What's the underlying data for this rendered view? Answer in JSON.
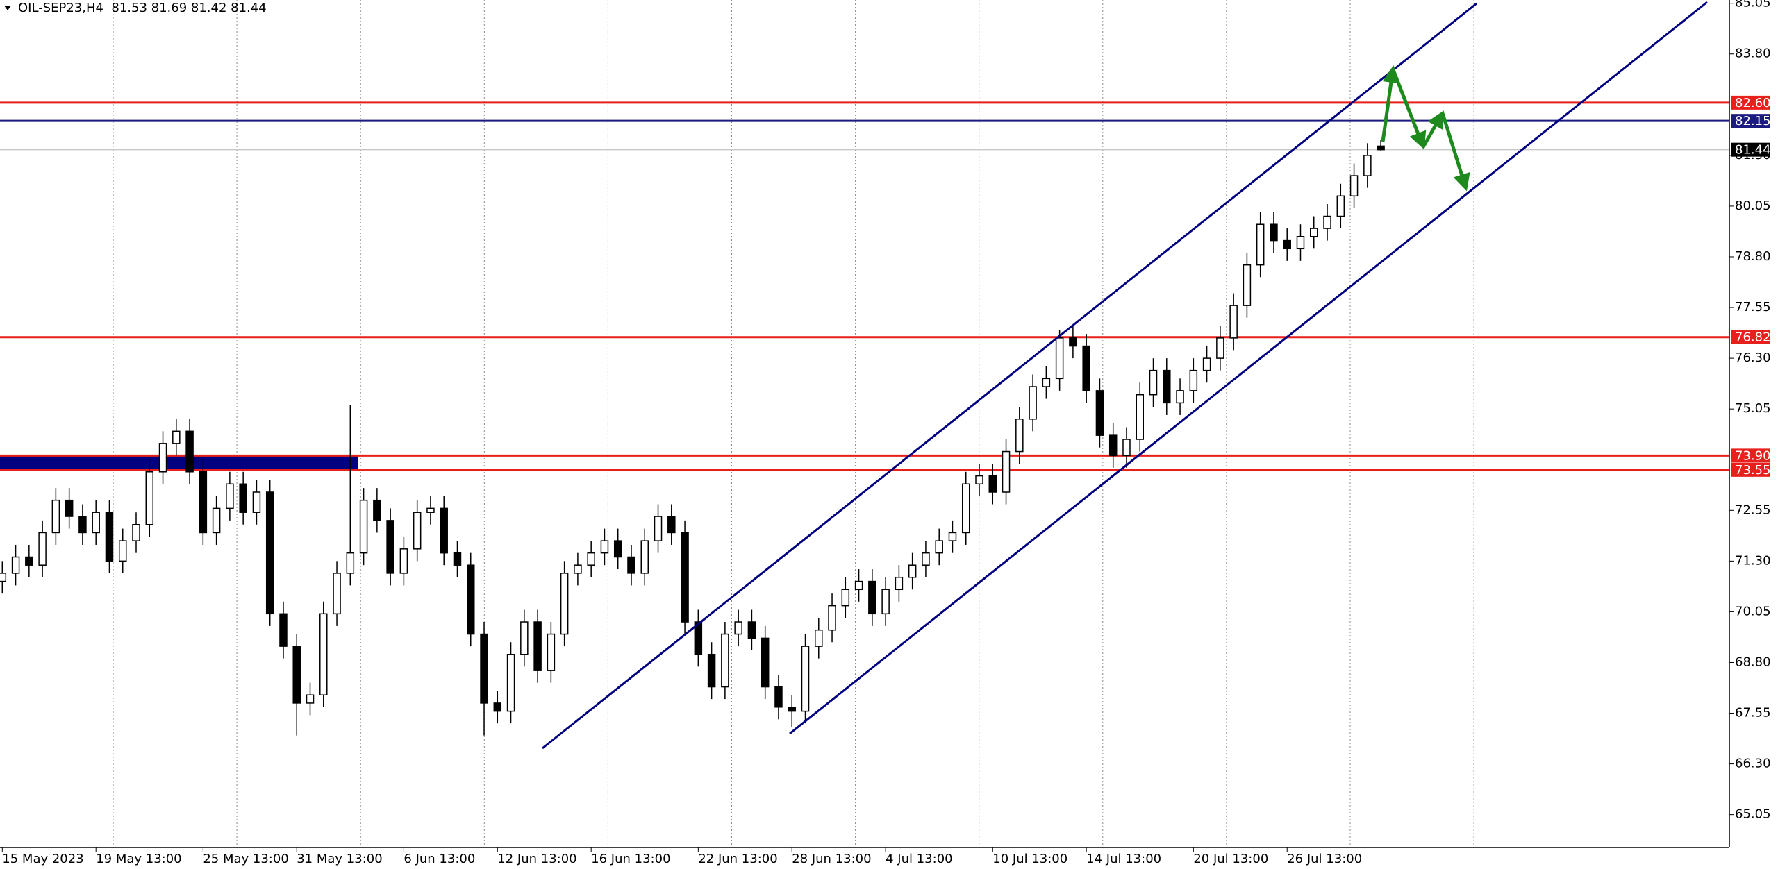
{
  "chart_data": {
    "type": "candlestick",
    "title": "OIL-SEP23,H4  81.53 81.69 81.42 81.44",
    "categories": [
      "15 May 2023",
      null,
      null,
      null,
      null,
      null,
      null,
      "19 May 13:00",
      null,
      null,
      null,
      null,
      null,
      null,
      null,
      "25 May 13:00",
      null,
      null,
      null,
      null,
      null,
      null,
      "31 May 13:00",
      null,
      null,
      null,
      null,
      null,
      null,
      null,
      "6 Jun 13:00",
      null,
      null,
      null,
      null,
      null,
      null,
      "12 Jun 13:00",
      null,
      null,
      null,
      null,
      null,
      null,
      "16 Jun 13:00",
      null,
      null,
      null,
      null,
      null,
      null,
      null,
      "22 Jun 13:00",
      null,
      null,
      null,
      null,
      null,
      null,
      "28 Jun 13:00",
      null,
      null,
      null,
      null,
      null,
      null,
      "4 Jul 13:00",
      null,
      null,
      null,
      null,
      null,
      null,
      null,
      "10 Jul 13:00",
      null,
      null,
      null,
      null,
      null,
      null,
      "14 Jul 13:00",
      null,
      null,
      null,
      null,
      null,
      null,
      null,
      "20 Jul 13:00",
      null,
      null,
      null,
      null,
      null,
      null,
      "26 Jul 13:00",
      null,
      null,
      null,
      null,
      null,
      null,
      null
    ],
    "open": [
      70.8,
      71.0,
      71.4,
      71.2,
      72.0,
      72.8,
      72.4,
      72.0,
      72.5,
      71.3,
      71.8,
      72.2,
      73.5,
      74.2,
      74.5,
      73.5,
      72.0,
      72.6,
      73.2,
      72.5,
      73.0,
      70.0,
      69.2,
      67.8,
      68.0,
      70.0,
      71.0,
      71.5,
      72.8,
      72.3,
      71.0,
      71.6,
      72.5,
      72.6,
      71.5,
      71.2,
      69.5,
      67.8,
      67.6,
      69.0,
      69.8,
      68.6,
      69.5,
      71.0,
      71.2,
      71.5,
      71.8,
      71.4,
      71.0,
      71.8,
      72.4,
      72.0,
      69.8,
      69.0,
      68.2,
      69.5,
      69.8,
      69.4,
      68.2,
      67.7,
      67.6,
      69.2,
      69.6,
      70.2,
      70.6,
      70.8,
      70.0,
      70.6,
      70.9,
      71.2,
      71.5,
      71.8,
      72.0,
      73.2,
      73.4,
      73.0,
      74.0,
      74.8,
      75.6,
      75.8,
      76.8,
      76.6,
      75.5,
      74.4,
      73.9,
      74.3,
      75.4,
      76.0,
      75.2,
      75.5,
      76.0,
      76.3,
      76.8,
      77.6,
      78.6,
      79.6,
      79.2,
      79.0,
      79.3,
      79.5,
      79.8,
      80.3,
      80.8,
      81.53
    ],
    "high": [
      71.3,
      71.7,
      71.7,
      72.3,
      73.1,
      73.1,
      72.7,
      72.8,
      72.8,
      72.1,
      72.5,
      73.8,
      74.5,
      74.8,
      74.8,
      73.8,
      72.9,
      73.5,
      73.5,
      73.3,
      73.3,
      70.3,
      69.5,
      68.3,
      70.3,
      71.3,
      75.15,
      73.1,
      73.1,
      72.6,
      71.9,
      72.8,
      72.9,
      72.9,
      71.8,
      71.5,
      69.8,
      68.1,
      69.3,
      70.1,
      70.1,
      69.8,
      71.3,
      71.5,
      71.8,
      72.1,
      72.1,
      71.7,
      72.1,
      72.7,
      72.7,
      72.3,
      70.1,
      69.3,
      69.8,
      70.1,
      70.1,
      69.7,
      68.5,
      68.0,
      69.5,
      69.9,
      70.5,
      70.9,
      71.1,
      71.1,
      70.9,
      71.2,
      71.5,
      71.8,
      72.1,
      72.3,
      73.5,
      73.7,
      73.7,
      74.3,
      75.1,
      75.9,
      76.1,
      77.0,
      77.1,
      76.9,
      75.8,
      74.7,
      74.6,
      75.7,
      76.3,
      76.3,
      75.8,
      76.3,
      76.6,
      77.1,
      77.9,
      78.9,
      79.9,
      79.9,
      79.5,
      79.6,
      79.8,
      80.1,
      80.6,
      81.1,
      81.6,
      81.69
    ],
    "low": [
      70.5,
      70.7,
      70.9,
      70.9,
      71.7,
      72.1,
      71.7,
      71.7,
      71.0,
      71.0,
      71.5,
      71.9,
      73.2,
      73.9,
      73.2,
      71.7,
      71.7,
      72.3,
      72.2,
      72.2,
      69.7,
      68.9,
      67.0,
      67.5,
      67.7,
      69.7,
      70.7,
      71.2,
      72.0,
      70.7,
      70.7,
      71.3,
      72.2,
      71.2,
      70.9,
      69.2,
      67.0,
      67.3,
      67.3,
      68.7,
      68.3,
      68.3,
      69.2,
      70.7,
      70.9,
      71.2,
      71.1,
      70.7,
      70.7,
      71.5,
      71.7,
      69.5,
      68.7,
      67.9,
      67.9,
      69.2,
      69.1,
      67.9,
      67.4,
      67.2,
      67.3,
      68.9,
      69.3,
      69.9,
      70.3,
      69.7,
      69.7,
      70.3,
      70.6,
      70.9,
      71.2,
      71.5,
      71.7,
      72.9,
      72.7,
      72.7,
      73.7,
      74.5,
      75.3,
      75.5,
      76.3,
      75.2,
      74.1,
      73.6,
      73.6,
      74.0,
      75.1,
      74.9,
      74.9,
      75.2,
      75.7,
      76.0,
      76.5,
      77.3,
      78.3,
      78.9,
      78.7,
      78.7,
      79.0,
      79.2,
      79.5,
      80.0,
      80.5,
      81.42
    ],
    "close": [
      71.0,
      71.4,
      71.2,
      72.0,
      72.8,
      72.4,
      72.0,
      72.5,
      71.3,
      71.8,
      72.2,
      73.5,
      74.2,
      74.5,
      73.5,
      72.0,
      72.6,
      73.2,
      72.5,
      73.0,
      70.0,
      69.2,
      67.8,
      68.0,
      70.0,
      71.0,
      71.5,
      72.8,
      72.3,
      71.0,
      71.6,
      72.5,
      72.6,
      71.5,
      71.2,
      69.5,
      67.8,
      67.6,
      69.0,
      69.8,
      68.6,
      69.5,
      71.0,
      71.2,
      71.5,
      71.8,
      71.4,
      71.0,
      71.8,
      72.4,
      72.0,
      69.8,
      69.0,
      68.2,
      69.5,
      69.8,
      69.4,
      68.2,
      67.7,
      67.6,
      69.2,
      69.6,
      70.2,
      70.6,
      70.8,
      70.0,
      70.6,
      70.9,
      71.2,
      71.5,
      71.8,
      72.0,
      73.2,
      73.4,
      73.0,
      74.0,
      74.8,
      75.6,
      75.8,
      76.8,
      76.6,
      75.5,
      74.4,
      73.9,
      74.3,
      75.4,
      76.0,
      75.2,
      75.5,
      76.0,
      76.3,
      76.8,
      77.6,
      78.6,
      79.6,
      79.2,
      79.0,
      79.3,
      79.5,
      79.8,
      80.3,
      80.8,
      81.3,
      81.44
    ],
    "up_color": "#ffffff",
    "down_color": "#000000",
    "ylim": [
      64.24,
      85.13
    ],
    "yticks": [
      85.05,
      {
        "value": 83.8,
        "label": "83.80"
      },
      {
        "value": 81.3,
        "label": "81.30"
      },
      80.05,
      {
        "value": 78.8,
        "label": "78.80"
      },
      77.55,
      {
        "value": 76.3,
        "label": "76.30"
      },
      75.05,
      72.55,
      {
        "value": 71.3,
        "label": "71.30"
      },
      70.05,
      {
        "value": 68.8,
        "label": "68.80"
      },
      67.55,
      {
        "value": 66.3,
        "label": "66.30"
      },
      65.05
    ],
    "levels": [
      {
        "value": 82.6,
        "label": "82.60",
        "color": "#e8201c"
      },
      {
        "value": 82.15,
        "label": "82.15",
        "color": "#1a1a80"
      },
      {
        "value": 76.82,
        "label": "76.82",
        "color": "#e8201c"
      },
      {
        "value": 73.9,
        "label": "73.90",
        "color": "#e8201c"
      },
      {
        "value": 73.55,
        "label": "73.55",
        "color": "#e8201c"
      }
    ],
    "current_price": {
      "value": 81.44,
      "label": "81.44",
      "color": "#000000"
    },
    "zone_color": "#000080"
  }
}
